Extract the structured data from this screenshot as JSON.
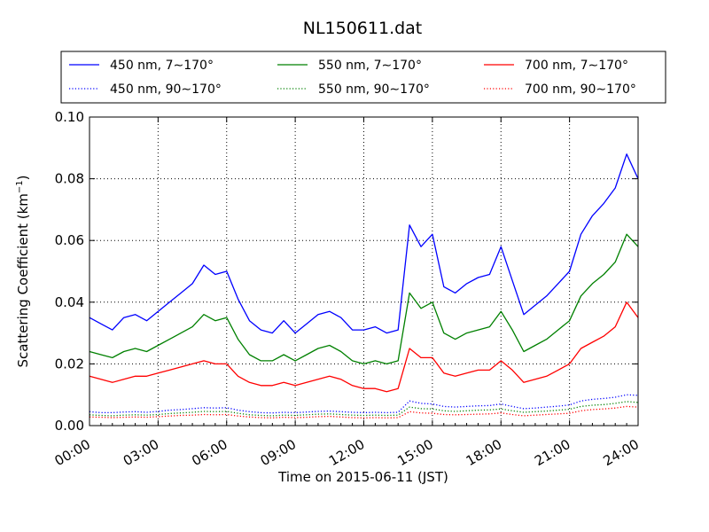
{
  "chart_data": {
    "type": "line",
    "title": "NL150611.dat",
    "xlabel": "Time on 2015-06-11 (JST)",
    "ylabel": "Scattering Coefficient (km",
    "ylabel_exp": "−1",
    "ylabel_close": ")",
    "xlim": [
      0,
      24
    ],
    "ylim": [
      0,
      0.1
    ],
    "x_ticks": [
      {
        "value": 0,
        "label": "00:00"
      },
      {
        "value": 3,
        "label": "03:00"
      },
      {
        "value": 6,
        "label": "06:00"
      },
      {
        "value": 9,
        "label": "09:00"
      },
      {
        "value": 12,
        "label": "12:00"
      },
      {
        "value": 15,
        "label": "15:00"
      },
      {
        "value": 18,
        "label": "18:00"
      },
      {
        "value": 21,
        "label": "21:00"
      },
      {
        "value": 24,
        "label": "24:00"
      }
    ],
    "y_ticks": [
      {
        "value": 0,
        "label": "0.00"
      },
      {
        "value": 0.02,
        "label": "0.02"
      },
      {
        "value": 0.04,
        "label": "0.04"
      },
      {
        "value": 0.06,
        "label": "0.06"
      },
      {
        "value": 0.08,
        "label": "0.08"
      },
      {
        "value": 0.1,
        "label": "0.10"
      }
    ],
    "grid": true,
    "legend_position": "top",
    "x_hours": [
      0,
      0.5,
      1,
      1.5,
      2,
      2.5,
      3,
      3.5,
      4,
      4.5,
      5,
      5.5,
      6,
      6.5,
      7,
      7.5,
      8,
      8.5,
      9,
      9.5,
      10,
      10.5,
      11,
      11.5,
      12,
      12.5,
      13,
      13.5,
      14,
      14.5,
      15,
      15.5,
      16,
      16.5,
      17,
      17.5,
      18,
      18.5,
      19,
      19.5,
      20,
      20.5,
      21,
      21.5,
      22,
      22.5,
      23,
      23.5,
      24
    ],
    "series": [
      {
        "name": "450 nm, 7∼170°",
        "color": "#0000ff",
        "style": "solid",
        "values": [
          0.035,
          0.033,
          0.031,
          0.035,
          0.036,
          0.034,
          0.037,
          0.04,
          0.043,
          0.046,
          0.052,
          0.049,
          0.05,
          0.041,
          0.034,
          0.031,
          0.03,
          0.034,
          0.03,
          0.033,
          0.036,
          0.037,
          0.035,
          0.031,
          0.031,
          0.032,
          0.03,
          0.031,
          0.065,
          0.058,
          0.062,
          0.045,
          0.043,
          0.046,
          0.048,
          0.049,
          0.058,
          0.047,
          0.036,
          0.039,
          0.042,
          0.046,
          0.05,
          0.062,
          0.068,
          0.072,
          0.077,
          0.088,
          0.08
        ]
      },
      {
        "name": "450 nm, 90∼170°",
        "color": "#0000ff",
        "style": "dotted",
        "values": [
          0.0045,
          0.0042,
          0.0042,
          0.0044,
          0.0045,
          0.0043,
          0.0046,
          0.005,
          0.0052,
          0.0055,
          0.0058,
          0.0057,
          0.0058,
          0.005,
          0.0045,
          0.0042,
          0.0041,
          0.0043,
          0.0042,
          0.0044,
          0.0046,
          0.0047,
          0.0045,
          0.0043,
          0.0042,
          0.0043,
          0.0042,
          0.0043,
          0.008,
          0.0072,
          0.007,
          0.0062,
          0.006,
          0.0062,
          0.0064,
          0.0065,
          0.007,
          0.0062,
          0.0055,
          0.0057,
          0.006,
          0.0063,
          0.0067,
          0.008,
          0.0085,
          0.0088,
          0.0092,
          0.01,
          0.0098
        ]
      },
      {
        "name": "550 nm, 7∼170°",
        "color": "#008000",
        "style": "solid",
        "values": [
          0.024,
          0.023,
          0.022,
          0.024,
          0.025,
          0.024,
          0.026,
          0.028,
          0.03,
          0.032,
          0.036,
          0.034,
          0.035,
          0.028,
          0.023,
          0.021,
          0.021,
          0.023,
          0.021,
          0.023,
          0.025,
          0.026,
          0.024,
          0.021,
          0.02,
          0.021,
          0.02,
          0.021,
          0.043,
          0.038,
          0.04,
          0.03,
          0.028,
          0.03,
          0.031,
          0.032,
          0.037,
          0.031,
          0.024,
          0.026,
          0.028,
          0.031,
          0.034,
          0.042,
          0.046,
          0.049,
          0.053,
          0.062,
          0.058
        ]
      },
      {
        "name": "550 nm, 90∼170°",
        "color": "#008000",
        "style": "dotted",
        "values": [
          0.0035,
          0.0033,
          0.0032,
          0.0034,
          0.0035,
          0.0034,
          0.0036,
          0.0039,
          0.0041,
          0.0043,
          0.0046,
          0.0045,
          0.0046,
          0.004,
          0.0035,
          0.0033,
          0.0032,
          0.0034,
          0.0033,
          0.0035,
          0.0037,
          0.0038,
          0.0036,
          0.0034,
          0.0033,
          0.0034,
          0.0033,
          0.0034,
          0.006,
          0.0055,
          0.0054,
          0.0048,
          0.0046,
          0.0048,
          0.005,
          0.0051,
          0.0054,
          0.0048,
          0.0043,
          0.0045,
          0.0047,
          0.005,
          0.0053,
          0.0062,
          0.0066,
          0.0068,
          0.0072,
          0.0078,
          0.0075
        ]
      },
      {
        "name": "700 nm, 7∼170°",
        "color": "#ff0000",
        "style": "solid",
        "values": [
          0.016,
          0.015,
          0.014,
          0.015,
          0.016,
          0.016,
          0.017,
          0.018,
          0.019,
          0.02,
          0.021,
          0.02,
          0.02,
          0.016,
          0.014,
          0.013,
          0.013,
          0.014,
          0.013,
          0.014,
          0.015,
          0.016,
          0.015,
          0.013,
          0.012,
          0.012,
          0.011,
          0.012,
          0.025,
          0.022,
          0.022,
          0.017,
          0.016,
          0.017,
          0.018,
          0.018,
          0.021,
          0.018,
          0.014,
          0.015,
          0.016,
          0.018,
          0.02,
          0.025,
          0.027,
          0.029,
          0.032,
          0.04,
          0.035
        ]
      },
      {
        "name": "700 nm, 90∼170°",
        "color": "#ff0000",
        "style": "dotted",
        "values": [
          0.0028,
          0.0027,
          0.0026,
          0.0027,
          0.0028,
          0.0027,
          0.0029,
          0.0031,
          0.0033,
          0.0034,
          0.0036,
          0.0035,
          0.0036,
          0.0031,
          0.0028,
          0.0026,
          0.0025,
          0.0027,
          0.0026,
          0.0027,
          0.0029,
          0.003,
          0.0028,
          0.0026,
          0.0025,
          0.0026,
          0.0025,
          0.0026,
          0.0045,
          0.0041,
          0.004,
          0.0036,
          0.0035,
          0.0036,
          0.0037,
          0.0038,
          0.0041,
          0.0036,
          0.0032,
          0.0034,
          0.0036,
          0.0038,
          0.004,
          0.0048,
          0.0052,
          0.0054,
          0.0057,
          0.0062,
          0.006
        ]
      }
    ]
  }
}
